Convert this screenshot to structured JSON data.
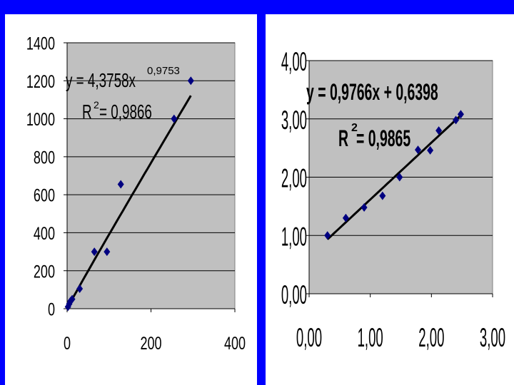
{
  "colors": {
    "background": "#0000ff",
    "panel": "#ffffff",
    "plot_area": "#c0c0c0",
    "gridline": "#000000",
    "marker": "#000080",
    "trendline": "#000000"
  },
  "chart_data": [
    {
      "type": "scatter",
      "title": "",
      "xlabel": "",
      "ylabel": "",
      "xlim": [
        0,
        400
      ],
      "ylim": [
        0,
        1400
      ],
      "x_ticks": [
        "0",
        "200",
        "400"
      ],
      "y_ticks": [
        "0",
        "200",
        "400",
        "600",
        "800",
        "1000",
        "1200",
        "1400"
      ],
      "grid": "horizontal",
      "marker": "diamond",
      "series": [
        {
          "x": [
            2,
            5,
            8,
            12,
            30,
            65,
            95,
            128,
            255,
            295
          ],
          "y": [
            10,
            25,
            40,
            50,
            105,
            300,
            300,
            655,
            1000,
            1200
          ]
        }
      ],
      "trendline": {
        "type": "power",
        "coefficient": 4.3758,
        "exponent": 0.9753,
        "x_range": [
          0.5,
          295
        ]
      },
      "equation_text": "y = 4,3758x",
      "equation_exponent": "0,9753",
      "r2_prefix": "R",
      "r2_superscript": "2",
      "r2_value": " = 0,9866"
    },
    {
      "type": "scatter",
      "title": "",
      "xlabel": "",
      "ylabel": "",
      "xlim": [
        0,
        3
      ],
      "ylim": [
        0,
        4
      ],
      "x_ticks": [
        "0,00",
        "1,00",
        "2,00",
        "3,00"
      ],
      "y_ticks": [
        "0,00",
        "1,00",
        "2,00",
        "3,00",
        "4,00"
      ],
      "grid": "horizontal",
      "marker": "diamond",
      "series": [
        {
          "x": [
            0.3,
            0.6,
            0.9,
            1.2,
            1.48,
            1.78,
            1.98,
            2.12,
            2.4,
            2.48
          ],
          "y": [
            1.0,
            1.3,
            1.48,
            1.68,
            2.0,
            2.47,
            2.46,
            2.8,
            2.98,
            3.08
          ]
        }
      ],
      "trendline": {
        "type": "linear",
        "slope": 0.9766,
        "intercept": 0.6398,
        "x_range": [
          0.3,
          2.48
        ]
      },
      "equation_text": "y = 0,9766x + 0,6398",
      "r2_prefix": "R",
      "r2_superscript": "2",
      "r2_value": " = 0,9865"
    }
  ]
}
